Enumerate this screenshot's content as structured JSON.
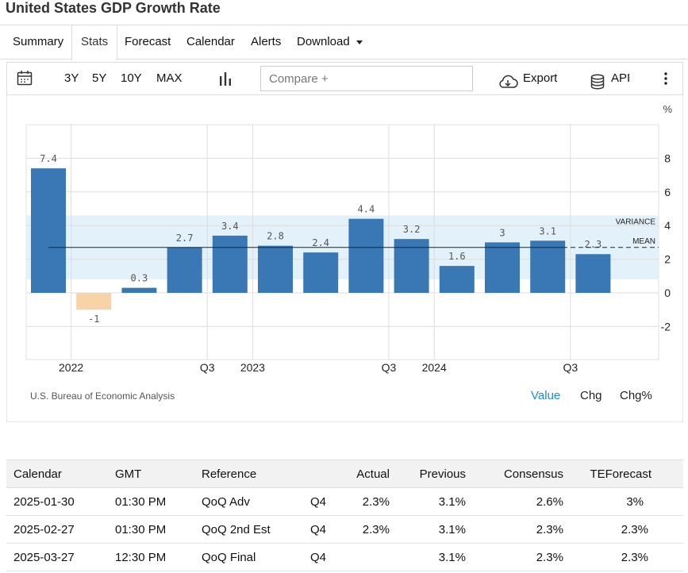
{
  "title": "United States GDP Growth Rate",
  "tabs": [
    {
      "label": "Summary",
      "active": false
    },
    {
      "label": "Stats",
      "active": true
    },
    {
      "label": "Forecast",
      "active": false
    },
    {
      "label": "Calendar",
      "active": false
    },
    {
      "label": "Alerts",
      "active": false
    },
    {
      "label": "Download",
      "active": false,
      "dropdown": true
    }
  ],
  "toolbar": {
    "calendar_icon": "calendar-icon",
    "ranges": [
      "3Y",
      "5Y",
      "10Y",
      "MAX"
    ],
    "chart_type_icon": "bar-chart-icon",
    "compare_placeholder": "Compare +",
    "export_label": "Export",
    "export_icon": "cloud-download-icon",
    "api_label": "API",
    "api_icon": "database-icon",
    "more_icon": "vertical-dots-icon"
  },
  "chart_data": {
    "type": "bar",
    "unit_label": "%",
    "categories": [
      "2021-Q4",
      "2022-Q1",
      "2022-Q2",
      "2022-Q3",
      "2022-Q4",
      "2023-Q1",
      "2023-Q2",
      "2023-Q3",
      "2023-Q4",
      "2024-Q1",
      "2024-Q2",
      "2024-Q3",
      "2024-Q4"
    ],
    "values": [
      7.4,
      -1,
      0.3,
      2.7,
      3.4,
      2.8,
      2.4,
      4.4,
      3.2,
      1.6,
      3,
      3.1,
      2.3
    ],
    "value_labels": [
      "7.4",
      "-1",
      "0.3",
      "2.7",
      "3.4",
      "2.8",
      "2.4",
      "4.4",
      "3.2",
      "1.6",
      "3",
      "3.1",
      "2.3"
    ],
    "x_tick_labels": [
      {
        "after_index": 0,
        "label": "2022"
      },
      {
        "after_index": 3,
        "label": "Q3"
      },
      {
        "after_index": 4,
        "label": "2023"
      },
      {
        "after_index": 7,
        "label": "Q3"
      },
      {
        "after_index": 8,
        "label": "2024"
      },
      {
        "after_index": 11,
        "label": "Q3"
      }
    ],
    "y_ticks": [
      8,
      6,
      4,
      2,
      0,
      -2
    ],
    "ylim": [
      -3.3,
      10.2
    ],
    "mean": 2.7,
    "variance_band": [
      0.8,
      4.6
    ],
    "variance_label": "VARIANCE",
    "mean_label": "MEAN",
    "colors": {
      "positive": "#3a78b5",
      "negative": "#f7d4a8",
      "band": "#e3f1fa",
      "grid": "#dddddd"
    },
    "grid": true,
    "source": "U.S. Bureau of Economic Analysis"
  },
  "view_buttons": [
    {
      "label": "Value",
      "active": true
    },
    {
      "label": "Chg",
      "active": false
    },
    {
      "label": "Chg%",
      "active": false
    }
  ],
  "calendar": {
    "headers": [
      "Calendar",
      "GMT",
      "Reference",
      "",
      "Actual",
      "Previous",
      "Consensus",
      "TEForecast"
    ],
    "rows": [
      [
        "2025-01-30",
        "01:30 PM",
        "QoQ Adv",
        "Q4",
        "2.3%",
        "3.1%",
        "2.6%",
        "3%"
      ],
      [
        "2025-02-27",
        "01:30 PM",
        "QoQ 2nd Est",
        "Q4",
        "2.3%",
        "3.1%",
        "2.3%",
        "2.3%"
      ],
      [
        "2025-03-27",
        "12:30 PM",
        "QoQ Final",
        "Q4",
        "",
        "3.1%",
        "2.3%",
        "2.3%"
      ]
    ]
  }
}
